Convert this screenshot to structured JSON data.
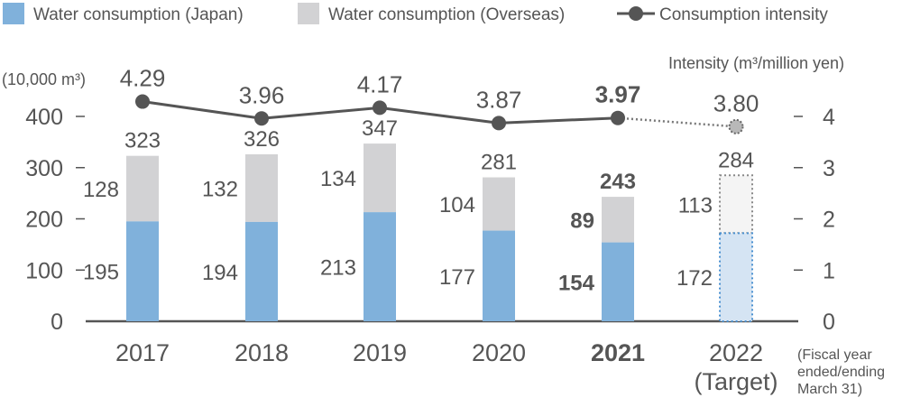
{
  "chart_data": {
    "type": "bar",
    "stacked": true,
    "categories": [
      "2017",
      "2018",
      "2019",
      "2020",
      "2021",
      "2022"
    ],
    "category_sublabels": [
      "",
      "",
      "",
      "",
      "",
      "(Target)"
    ],
    "highlight_category": "2021",
    "target_category": "2022",
    "ylabel": "(10,000 m³)",
    "ylabel_right": "Intensity (m³/million yen)",
    "ylim": [
      0,
      400
    ],
    "yticks": [
      0,
      100,
      200,
      300,
      400
    ],
    "ylim_right": [
      0,
      4
    ],
    "yticks_right": [
      0,
      1,
      2,
      3,
      4
    ],
    "xnote": [
      "(Fiscal year",
      "ended/ending",
      "March 31)"
    ],
    "grid": false,
    "legend_position": "top",
    "series": [
      {
        "name": "Water consumption (Japan)",
        "kind": "bar",
        "color": "#80b1db",
        "values": [
          195,
          194,
          213,
          177,
          154,
          172
        ]
      },
      {
        "name": "Water consumption (Overseas)",
        "kind": "bar",
        "color": "#d2d2d4",
        "values": [
          128,
          132,
          134,
          104,
          89,
          113
        ]
      },
      {
        "name": "Consumption intensity",
        "kind": "line",
        "axis": "right",
        "color": "#555555",
        "values": [
          4.29,
          3.96,
          4.17,
          3.87,
          3.97,
          3.8
        ],
        "labels": [
          "4.29",
          "3.96",
          "4.17",
          "3.87",
          "3.97",
          "3.80"
        ]
      }
    ],
    "totals": [
      323,
      326,
      347,
      281,
      243,
      284
    ]
  }
}
